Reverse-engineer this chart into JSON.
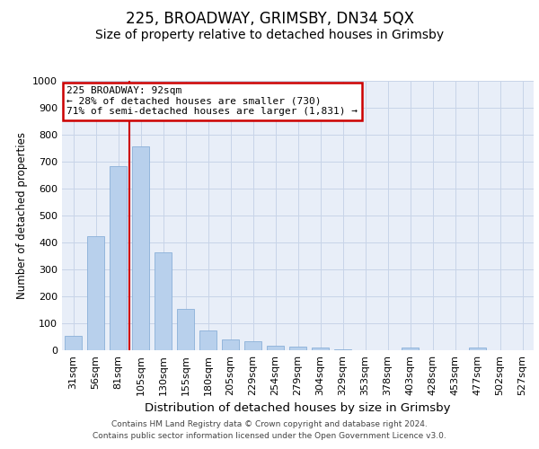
{
  "title1": "225, BROADWAY, GRIMSBY, DN34 5QX",
  "title2": "Size of property relative to detached houses in Grimsby",
  "xlabel": "Distribution of detached houses by size in Grimsby",
  "ylabel": "Number of detached properties",
  "footer1": "Contains HM Land Registry data © Crown copyright and database right 2024.",
  "footer2": "Contains public sector information licensed under the Open Government Licence v3.0.",
  "categories": [
    "31sqm",
    "56sqm",
    "81sqm",
    "105sqm",
    "130sqm",
    "155sqm",
    "180sqm",
    "205sqm",
    "229sqm",
    "254sqm",
    "279sqm",
    "304sqm",
    "329sqm",
    "353sqm",
    "378sqm",
    "403sqm",
    "428sqm",
    "453sqm",
    "477sqm",
    "502sqm",
    "527sqm"
  ],
  "values": [
    52,
    425,
    685,
    757,
    362,
    153,
    75,
    40,
    33,
    18,
    12,
    10,
    5,
    0,
    0,
    10,
    0,
    0,
    10,
    0,
    0
  ],
  "bar_color": "#b8d0ec",
  "bar_edge_color": "#8ab0d8",
  "vline_x": 2.5,
  "vline_color": "#cc0000",
  "annotation_line1": "225 BROADWAY: 92sqm",
  "annotation_line2": "← 28% of detached houses are smaller (730)",
  "annotation_line3": "71% of semi-detached houses are larger (1,831) →",
  "annotation_box_color": "#ffffff",
  "annotation_box_edge": "#cc0000",
  "ylim": [
    0,
    1000
  ],
  "yticks": [
    0,
    100,
    200,
    300,
    400,
    500,
    600,
    700,
    800,
    900,
    1000
  ],
  "grid_color": "#c8d4e8",
  "plot_bg_color": "#e8eef8",
  "title1_fontsize": 12,
  "title2_fontsize": 10,
  "xlabel_fontsize": 9.5,
  "ylabel_fontsize": 8.5,
  "tick_fontsize": 8,
  "footer_fontsize": 6.5
}
